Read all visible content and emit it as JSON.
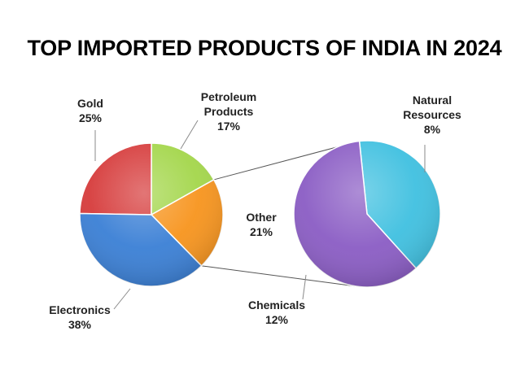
{
  "chart_data": {
    "type": "pie",
    "title": "TOP IMPORTED PRODUCTS OF INDIA IN 2024",
    "main_pie": {
      "slices": [
        {
          "name": "Gold",
          "value": 25,
          "label_lines": [
            "Gold",
            "25%"
          ],
          "color": "#d63b3b"
        },
        {
          "name": "Petroleum Products",
          "value": 17,
          "label_lines": [
            "Petroleum",
            "Products",
            "17%"
          ],
          "color": "#a3d64a"
        },
        {
          "name": "Other",
          "value": 21,
          "label_lines": [
            "Other",
            "21%"
          ],
          "color": "#f7941d"
        },
        {
          "name": "Electronics",
          "value": 38,
          "label_lines": [
            "Electronics",
            "38%"
          ],
          "color": "#3a7fd5"
        }
      ]
    },
    "secondary_pie": {
      "slices": [
        {
          "name": "Natural Resources",
          "value": 8,
          "label_lines": [
            "Natural",
            "Resources",
            "8%"
          ],
          "color": "#3fc0e0"
        },
        {
          "name": "Chemicals",
          "value": 12,
          "label_lines": [
            "Chemicals",
            "12%"
          ],
          "color": "#8a5cc4"
        }
      ]
    }
  }
}
